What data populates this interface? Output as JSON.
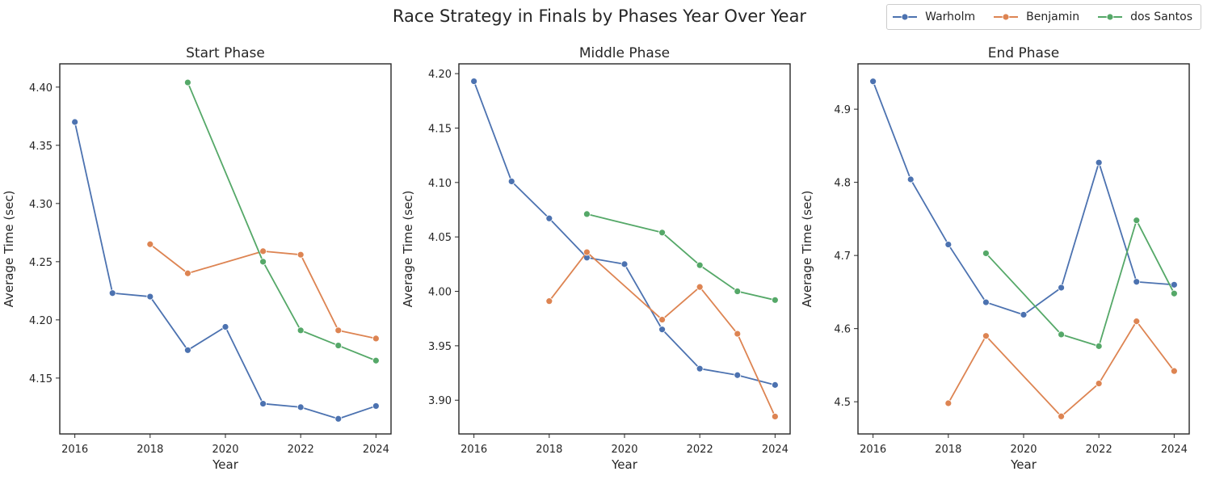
{
  "figure": {
    "title": "Race Strategy in Finals by Phases Year Over Year",
    "legend": [
      {
        "name": "Warholm",
        "color": "#4c72b0"
      },
      {
        "name": "Benjamin",
        "color": "#dd8452"
      },
      {
        "name": "dos Santos",
        "color": "#55a868"
      }
    ]
  },
  "chart_data": [
    {
      "type": "line",
      "title": "Start Phase",
      "xlabel": "Year",
      "ylabel": "Average Time (sec)",
      "xticks": [
        "2016",
        "2018",
        "2020",
        "2022",
        "2024"
      ],
      "yticks": [
        "4.15",
        "4.20",
        "4.25",
        "4.30",
        "4.35",
        "4.40"
      ],
      "xlim": [
        2015.6,
        2024.4
      ],
      "ylim": [
        4.102,
        4.42
      ],
      "series": [
        {
          "name": "Warholm",
          "color": "#4c72b0",
          "points": [
            [
              2016,
              4.37
            ],
            [
              2017,
              4.223
            ],
            [
              2018,
              4.22
            ],
            [
              2019,
              4.174
            ],
            [
              2020,
              4.194
            ],
            [
              2021,
              4.128
            ],
            [
              2022,
              4.125
            ],
            [
              2023,
              4.115
            ],
            [
              2024,
              4.126
            ]
          ]
        },
        {
          "name": "Benjamin",
          "color": "#dd8452",
          "points": [
            [
              2018,
              4.265
            ],
            [
              2019,
              4.24
            ],
            [
              2021,
              4.259
            ],
            [
              2022,
              4.256
            ],
            [
              2023,
              4.191
            ],
            [
              2024,
              4.184
            ]
          ]
        },
        {
          "name": "dos Santos",
          "color": "#55a868",
          "points": [
            [
              2019,
              4.404
            ],
            [
              2021,
              4.25
            ],
            [
              2022,
              4.191
            ],
            [
              2023,
              4.178
            ],
            [
              2024,
              4.165
            ]
          ]
        }
      ]
    },
    {
      "type": "line",
      "title": "Middle Phase",
      "xlabel": "Year",
      "ylabel": "Average Time (sec)",
      "xticks": [
        "2016",
        "2018",
        "2020",
        "2022",
        "2024"
      ],
      "yticks": [
        "3.90",
        "3.95",
        "4.00",
        "4.05",
        "4.10",
        "4.15",
        "4.20"
      ],
      "xlim": [
        2015.6,
        2024.4
      ],
      "ylim": [
        3.869,
        4.209
      ],
      "series": [
        {
          "name": "Warholm",
          "color": "#4c72b0",
          "points": [
            [
              2016,
              4.193
            ],
            [
              2017,
              4.101
            ],
            [
              2018,
              4.067
            ],
            [
              2019,
              4.031
            ],
            [
              2020,
              4.025
            ],
            [
              2021,
              3.965
            ],
            [
              2022,
              3.929
            ],
            [
              2023,
              3.923
            ],
            [
              2024,
              3.914
            ]
          ]
        },
        {
          "name": "Benjamin",
          "color": "#dd8452",
          "points": [
            [
              2018,
              3.991
            ],
            [
              2019,
              4.036
            ],
            [
              2021,
              3.974
            ],
            [
              2022,
              4.004
            ],
            [
              2023,
              3.961
            ],
            [
              2024,
              3.885
            ]
          ]
        },
        {
          "name": "dos Santos",
          "color": "#55a868",
          "points": [
            [
              2019,
              4.071
            ],
            [
              2021,
              4.054
            ],
            [
              2022,
              4.024
            ],
            [
              2023,
              4.0
            ],
            [
              2024,
              3.992
            ]
          ]
        }
      ]
    },
    {
      "type": "line",
      "title": "End Phase",
      "xlabel": "Year",
      "ylabel": "Average Time (sec)",
      "xticks": [
        "2016",
        "2018",
        "2020",
        "2022",
        "2024"
      ],
      "yticks": [
        "4.5",
        "4.6",
        "4.7",
        "4.8",
        "4.9"
      ],
      "xlim": [
        2015.6,
        2024.4
      ],
      "ylim": [
        4.456,
        4.962
      ],
      "series": [
        {
          "name": "Warholm",
          "color": "#4c72b0",
          "points": [
            [
              2016,
              4.938
            ],
            [
              2017,
              4.804
            ],
            [
              2018,
              4.715
            ],
            [
              2019,
              4.636
            ],
            [
              2020,
              4.619
            ],
            [
              2021,
              4.656
            ],
            [
              2022,
              4.827
            ],
            [
              2023,
              4.664
            ],
            [
              2024,
              4.66
            ]
          ]
        },
        {
          "name": "Benjamin",
          "color": "#dd8452",
          "points": [
            [
              2018,
              4.498
            ],
            [
              2019,
              4.59
            ],
            [
              2021,
              4.48
            ],
            [
              2022,
              4.525
            ],
            [
              2023,
              4.61
            ],
            [
              2024,
              4.542
            ]
          ]
        },
        {
          "name": "dos Santos",
          "color": "#55a868",
          "points": [
            [
              2019,
              4.703
            ],
            [
              2021,
              4.592
            ],
            [
              2022,
              4.576
            ],
            [
              2023,
              4.748
            ],
            [
              2024,
              4.648
            ]
          ]
        }
      ]
    }
  ]
}
